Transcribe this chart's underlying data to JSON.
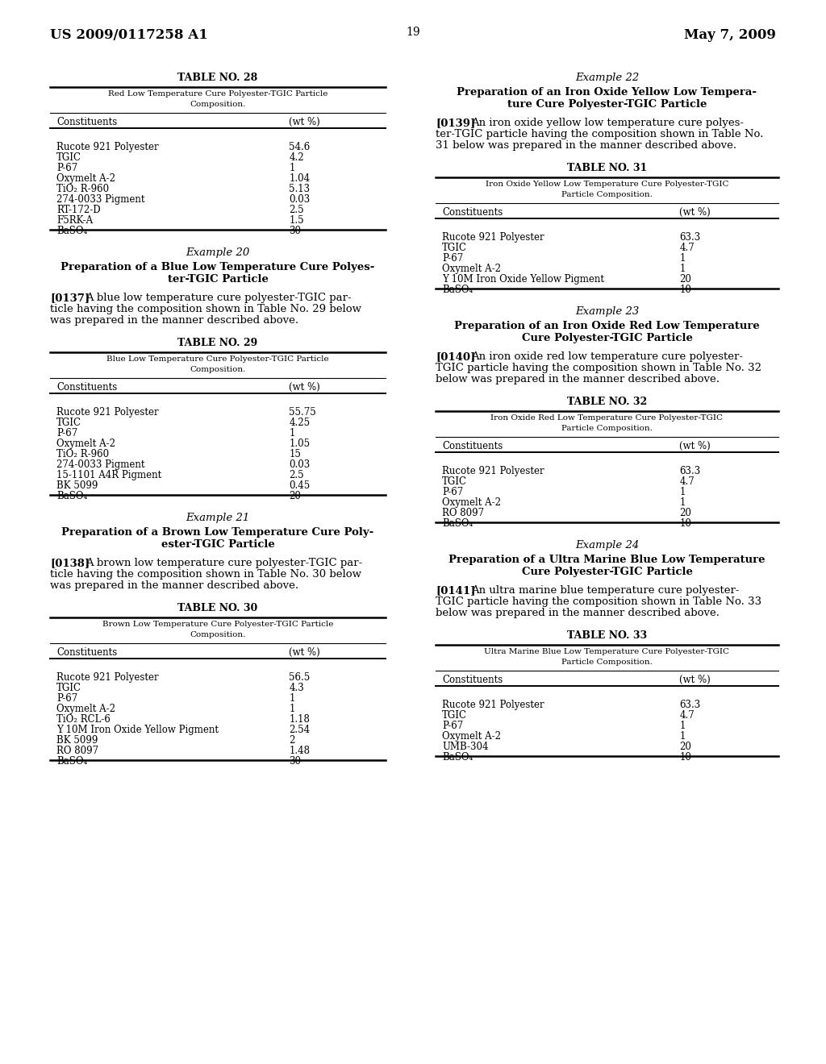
{
  "page_number": "19",
  "header_left": "US 2009/0117258 A1",
  "header_right": "May 7, 2009",
  "background_color": "#ffffff",
  "left_column": {
    "blocks": [
      {
        "type": "table",
        "title": "TABLE NO. 28",
        "subtitle": "Red Low Temperature Cure Polyester-TGIC Particle\nComposition.",
        "col1_header": "Constituents",
        "col2_header": "(wt %)",
        "rows": [
          [
            "Rucote 921 Polyester",
            "54.6"
          ],
          [
            "TGIC",
            "4.2"
          ],
          [
            "P-67",
            "1"
          ],
          [
            "Oxymelt A-2",
            "1.04"
          ],
          [
            "TiO₂ R-960",
            "5.13"
          ],
          [
            "274-0033 Pigment",
            "0.03"
          ],
          [
            "RT-172-D",
            "2.5"
          ],
          [
            "F5RK-A",
            "1.5"
          ],
          [
            "BaSO₄",
            "30"
          ]
        ]
      },
      {
        "type": "example_header",
        "example_num": "Example 20",
        "title": "Preparation of a Blue Low Temperature Cure Polyes-\nter-TGIC Particle"
      },
      {
        "type": "paragraph",
        "tag": "[0137]",
        "text": "A blue low temperature cure polyester-TGIC par-\nticle having the composition shown in Table No. 29 below\nwas prepared in the manner described above."
      },
      {
        "type": "table",
        "title": "TABLE NO. 29",
        "subtitle": "Blue Low Temperature Cure Polyester-TGIC Particle\nComposition.",
        "col1_header": "Constituents",
        "col2_header": "(wt %)",
        "rows": [
          [
            "Rucote 921 Polyester",
            "55.75"
          ],
          [
            "TGIC",
            "4.25"
          ],
          [
            "P-67",
            "1"
          ],
          [
            "Oxymelt A-2",
            "1.05"
          ],
          [
            "TiO₂ R-960",
            "15"
          ],
          [
            "274-0033 Pigment",
            "0.03"
          ],
          [
            "15-1101 A4R Pigment",
            "2.5"
          ],
          [
            "BK 5099",
            "0.45"
          ],
          [
            "BaSO₄",
            "20"
          ]
        ]
      },
      {
        "type": "example_header",
        "example_num": "Example 21",
        "title": "Preparation of a Brown Low Temperature Cure Poly-\nester-TGIC Particle"
      },
      {
        "type": "paragraph",
        "tag": "[0138]",
        "text": "A brown low temperature cure polyester-TGIC par-\nticle having the composition shown in Table No. 30 below\nwas prepared in the manner described above."
      },
      {
        "type": "table",
        "title": "TABLE NO. 30",
        "subtitle": "Brown Low Temperature Cure Polyester-TGIC Particle\nComposition.",
        "col1_header": "Constituents",
        "col2_header": "(wt %)",
        "rows": [
          [
            "Rucote 921 Polyester",
            "56.5"
          ],
          [
            "TGIC",
            "4.3"
          ],
          [
            "P-67",
            "1"
          ],
          [
            "Oxymelt A-2",
            "1"
          ],
          [
            "TiO₂ RCL-6",
            "1.18"
          ],
          [
            "Y 10M Iron Oxide Yellow Pigment",
            "2.54"
          ],
          [
            "BK 5099",
            "2"
          ],
          [
            "RO 8097",
            "1.48"
          ],
          [
            "BaSO₄",
            "30"
          ]
        ]
      }
    ]
  },
  "right_column": {
    "blocks": [
      {
        "type": "example_header",
        "example_num": "Example 22",
        "title": "Preparation of an Iron Oxide Yellow Low Tempera-\nture Cure Polyester-TGIC Particle"
      },
      {
        "type": "paragraph",
        "tag": "[0139]",
        "text": "An iron oxide yellow low temperature cure polyes-\nter-TGIC particle having the composition shown in Table No.\n31 below was prepared in the manner described above."
      },
      {
        "type": "table",
        "title": "TABLE NO. 31",
        "subtitle": "Iron Oxide Yellow Low Temperature Cure Polyester-TGIC\nParticle Composition.",
        "col1_header": "Constituents",
        "col2_header": "(wt %)",
        "rows": [
          [
            "Rucote 921 Polyester",
            "63.3"
          ],
          [
            "TGIC",
            "4.7"
          ],
          [
            "P-67",
            "1"
          ],
          [
            "Oxymelt A-2",
            "1"
          ],
          [
            "Y 10M Iron Oxide Yellow Pigment",
            "20"
          ],
          [
            "BaSO₄",
            "10"
          ]
        ]
      },
      {
        "type": "example_header",
        "example_num": "Example 23",
        "title": "Preparation of an Iron Oxide Red Low Temperature\nCure Polyester-TGIC Particle"
      },
      {
        "type": "paragraph",
        "tag": "[0140]",
        "text": "An iron oxide red low temperature cure polyester-\nTGIC particle having the composition shown in Table No. 32\nbelow was prepared in the manner described above."
      },
      {
        "type": "table",
        "title": "TABLE NO. 32",
        "subtitle": "Iron Oxide Red Low Temperature Cure Polyester-TGIC\nParticle Composition.",
        "col1_header": "Constituents",
        "col2_header": "(wt %)",
        "rows": [
          [
            "Rucote 921 Polyester",
            "63.3"
          ],
          [
            "TGIC",
            "4.7"
          ],
          [
            "P-67",
            "1"
          ],
          [
            "Oxymelt A-2",
            "1"
          ],
          [
            "RO 8097",
            "20"
          ],
          [
            "BaSO₄",
            "10"
          ]
        ]
      },
      {
        "type": "example_header",
        "example_num": "Example 24",
        "title": "Preparation of a Ultra Marine Blue Low Temperature\nCure Polyester-TGIC Particle"
      },
      {
        "type": "paragraph",
        "tag": "[0141]",
        "text": "An ultra marine blue temperature cure polyester-\nTGIC particle having the composition shown in Table No. 33\nbelow was prepared in the manner described above."
      },
      {
        "type": "table",
        "title": "TABLE NO. 33",
        "subtitle": "Ultra Marine Blue Low Temperature Cure Polyester-TGIC\nParticle Composition.",
        "col1_header": "Constituents",
        "col2_header": "(wt %)",
        "rows": [
          [
            "Rucote 921 Polyester",
            "63.3"
          ],
          [
            "TGIC",
            "4.7"
          ],
          [
            "P-67",
            "1"
          ],
          [
            "Oxymelt A-2",
            "1"
          ],
          [
            "UMB-304",
            "20"
          ],
          [
            "BaSO₄",
            "10"
          ]
        ]
      }
    ]
  }
}
